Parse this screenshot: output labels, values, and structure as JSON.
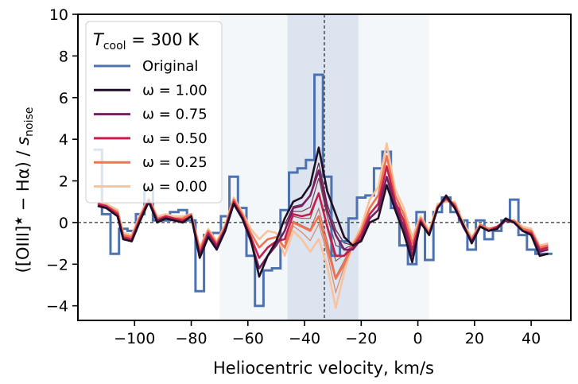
{
  "chart_data": {
    "type": "line",
    "xlabel": "Heliocentric velocity, km/s",
    "ylabel_main": "([OIII]",
    "ylabel_sup": "★",
    "ylabel_rest": " − Hα) / ",
    "ylabel_s": "s",
    "ylabel_sub": "noise",
    "xlim": [
      -120,
      54
    ],
    "ylim": [
      -4.7,
      10
    ],
    "xticks": [
      -100,
      -80,
      -60,
      -40,
      -20,
      0,
      20,
      40
    ],
    "xtick_labels": [
      "−100",
      "−80",
      "−60",
      "−40",
      "−20",
      "0",
      "20",
      "40"
    ],
    "yticks": [
      -4,
      -2,
      0,
      2,
      4,
      6,
      8,
      10
    ],
    "ytick_labels": [
      "−4",
      "−2",
      "0",
      "2",
      "4",
      "6",
      "8",
      "10"
    ],
    "hline_y": 0,
    "vline_x": -33,
    "shaded_regions": [
      {
        "x0": -70,
        "x1": 4,
        "color": "#4c72b0",
        "opacity": 0.06
      },
      {
        "x0": -46,
        "x1": -21,
        "color": "#4c72b0",
        "opacity": 0.14
      }
    ],
    "legend": {
      "title_prefix": "T",
      "title_sub": "cool",
      "title_rest": " = 300 K",
      "location": "upper-left"
    },
    "original": {
      "name": "Original",
      "color": "#4c72b0",
      "x": [
        -113,
        -110,
        -107,
        -104,
        -101,
        -98,
        -95,
        -92,
        -89,
        -86,
        -83,
        -80,
        -77,
        -74,
        -71,
        -68,
        -65,
        -62,
        -59,
        -56,
        -53,
        -50,
        -47,
        -44,
        -41,
        -38,
        -35,
        -32,
        -29,
        -26,
        -23,
        -20,
        -17,
        -14,
        -11,
        -8,
        -5,
        -2,
        1,
        4,
        7,
        10,
        13,
        16,
        19,
        22,
        25,
        28,
        31,
        34,
        37,
        40,
        43,
        46
      ],
      "y": [
        3.5,
        0.4,
        -1.5,
        -0.3,
        -0.4,
        0.4,
        1.6,
        0.1,
        0.1,
        0.5,
        0.6,
        0.1,
        -3.3,
        -0.6,
        -0.5,
        0.3,
        2.2,
        0.7,
        -1.6,
        -4.0,
        -2.3,
        -2.2,
        0.6,
        2.4,
        2.6,
        3.0,
        7.1,
        2.2,
        -1.6,
        -0.9,
        0.2,
        1.2,
        1.3,
        2.6,
        3.4,
        0.7,
        -1.1,
        -2.0,
        0.5,
        -1.8,
        0.5,
        1.2,
        0.5,
        0.1,
        -1.3,
        0.1,
        -0.8,
        -0.4,
        0.1,
        1.1,
        -0.6,
        -1.3,
        -1.5,
        -1.5
      ]
    },
    "x": [
      -113,
      -110,
      -106,
      -104,
      -101,
      -98,
      -95,
      -92,
      -89,
      -86,
      -83,
      -80,
      -77,
      -74,
      -71,
      -68,
      -65,
      -62,
      -59,
      -56,
      -53,
      -50,
      -47,
      -44,
      -41,
      -38,
      -35,
      -32,
      -29,
      -26,
      -23,
      -20,
      -17,
      -14,
      -11,
      -8,
      -5,
      -2,
      1,
      4,
      7,
      10,
      13,
      16,
      19,
      22,
      25,
      28,
      31,
      34,
      37,
      40,
      43,
      46
    ],
    "series": [
      {
        "name": "ω = 1.00",
        "color": "#1f0e24",
        "y": [
          0.8,
          0.7,
          0.3,
          -0.8,
          -0.9,
          0.1,
          1.0,
          0.0,
          0.2,
          0.1,
          0.0,
          0.3,
          -1.7,
          -0.7,
          -1.3,
          -0.4,
          0.9,
          0.2,
          -0.8,
          -2.6,
          -1.6,
          -0.9,
          0.2,
          1.0,
          1.2,
          1.8,
          3.6,
          1.5,
          0.4,
          -0.7,
          -1.1,
          -0.9,
          0.0,
          0.2,
          1.8,
          0.6,
          -0.5,
          -1.9,
          0.0,
          -0.6,
          0.7,
          1.3,
          0.7,
          -0.1,
          -1.0,
          -0.2,
          -0.4,
          -0.3,
          0.2,
          0.0,
          -0.4,
          -0.6,
          -1.6,
          -1.5
        ]
      },
      {
        "name": "ω = 0.75",
        "color": "#76205f",
        "y": [
          0.8,
          0.7,
          0.3,
          -0.8,
          -0.9,
          0.1,
          1.0,
          0.1,
          0.2,
          0.1,
          0.0,
          0.3,
          -1.6,
          -0.6,
          -1.2,
          -0.3,
          0.9,
          0.2,
          -0.9,
          -2.2,
          -1.6,
          -1.1,
          -0.4,
          0.7,
          0.8,
          1.3,
          2.5,
          0.6,
          -0.6,
          -1.3,
          -1.3,
          -0.8,
          0.2,
          0.6,
          2.2,
          0.8,
          -0.2,
          -1.6,
          0.0,
          -0.6,
          0.7,
          1.2,
          0.7,
          -0.2,
          -0.9,
          -0.2,
          -0.4,
          -0.3,
          0.1,
          0.0,
          -0.4,
          -0.6,
          -1.4,
          -1.3
        ]
      },
      {
        "name": "ω = 0.50",
        "color": "#c71e4e",
        "y": [
          0.9,
          0.8,
          0.4,
          -0.7,
          -0.8,
          0.2,
          1.1,
          0.1,
          0.3,
          0.2,
          0.1,
          0.3,
          -1.5,
          -0.5,
          -1.1,
          -0.3,
          1.0,
          0.3,
          -0.7,
          -1.7,
          -1.2,
          -0.9,
          -0.8,
          0.4,
          0.3,
          0.4,
          1.4,
          -0.2,
          -1.6,
          -1.6,
          -1.2,
          -0.6,
          0.4,
          0.9,
          2.7,
          1.0,
          0.1,
          -1.3,
          0.1,
          -0.6,
          0.7,
          1.2,
          0.8,
          -0.2,
          -0.9,
          -0.2,
          -0.4,
          -0.2,
          0.1,
          0.0,
          -0.4,
          -0.5,
          -1.3,
          -1.2
        ]
      },
      {
        "name": "ω = 0.25",
        "color": "#f1724e",
        "y": [
          0.9,
          0.8,
          0.5,
          -0.6,
          -0.7,
          0.3,
          1.1,
          0.2,
          0.3,
          0.2,
          0.2,
          0.4,
          -1.3,
          -0.4,
          -1.0,
          -0.2,
          1.1,
          0.4,
          -0.5,
          -1.2,
          -0.8,
          -0.7,
          -1.2,
          0.0,
          -0.2,
          -0.4,
          0.3,
          -1.2,
          -2.7,
          -2.0,
          -1.1,
          -0.4,
          0.7,
          1.3,
          3.2,
          1.3,
          0.4,
          -1.0,
          0.2,
          -0.5,
          0.8,
          1.1,
          0.9,
          -0.1,
          -0.8,
          -0.1,
          -0.3,
          -0.2,
          0.1,
          0.1,
          -0.3,
          -0.4,
          -1.2,
          -1.1
        ]
      },
      {
        "name": "ω = 0.00",
        "color": "#f8c39e",
        "y": [
          1.0,
          0.9,
          0.6,
          -0.5,
          -0.6,
          0.4,
          1.2,
          0.3,
          0.4,
          0.3,
          0.3,
          0.4,
          -1.2,
          -0.3,
          -0.9,
          -0.1,
          1.2,
          0.5,
          -0.3,
          -0.8,
          -0.4,
          -0.5,
          -1.6,
          -0.4,
          -0.8,
          -1.4,
          -0.8,
          -2.1,
          -4.1,
          -2.4,
          -1.0,
          -0.2,
          1.1,
          1.7,
          3.8,
          1.6,
          0.7,
          -0.7,
          0.3,
          -0.4,
          0.9,
          1.0,
          1.0,
          0.0,
          -0.7,
          -0.1,
          -0.3,
          -0.2,
          0.1,
          0.1,
          -0.2,
          -0.3,
          -1.1,
          -1.0
        ]
      }
    ],
    "intermediate": {
      "color_start": "#3a1035",
      "color_end": "#f4a07a",
      "count": 5,
      "span": [
        22,
        31
      ]
    }
  }
}
